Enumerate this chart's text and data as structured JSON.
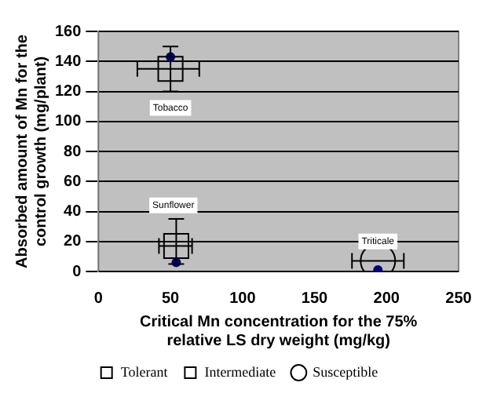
{
  "chart_data": {
    "type": "scatter",
    "xlabel": "Critical Mn concentration for the 75% relative LS dry weight (mg/kg)",
    "ylabel": "Absorbed amount of Mn for the control growth (mg/plant)",
    "series": [
      {
        "name": "Tolerant",
        "color": "#000000",
        "marker": "square",
        "x": [
          50
        ],
        "values": [
          135
        ],
        "errors": [
          [
            120,
            150
          ]
        ],
        "xerrors": [
          [
            27,
            70
          ]
        ]
      },
      {
        "name": "Intermediate",
        "color": "#000000",
        "marker": "square",
        "x": [
          54
        ],
        "values": [
          17
        ],
        "errors": [
          [
            5,
            35
          ]
        ],
        "xerrors": [
          [
            42,
            65
          ]
        ]
      },
      {
        "name": "Susceptible",
        "color": "#000000",
        "marker": "circle",
        "x": [
          194
        ],
        "values": [
          7
        ],
        "errors": [
          null
        ],
        "xerrors": [
          [
            176,
            212
          ]
        ]
      },
      {
        "color": "#000080",
        "marker": "circle",
        "x": [
          50,
          54,
          194
        ],
        "values": [
          143,
          6,
          1
        ]
      }
    ],
    "annotations": [
      {
        "text": "Tobacco",
        "x": 50,
        "y": 109
      },
      {
        "text": "Sunflower",
        "x": 52,
        "y": 44
      },
      {
        "text": "Triticale",
        "x": 194,
        "y": 20
      }
    ],
    "xlim": [
      0,
      250
    ],
    "xticks": [
      0,
      50,
      100,
      150,
      200,
      250
    ],
    "ylim": [
      0,
      160
    ],
    "yticks": [
      0,
      20,
      40,
      60,
      80,
      100,
      120,
      140,
      160
    ],
    "grid": "y",
    "legend": "bottom"
  }
}
